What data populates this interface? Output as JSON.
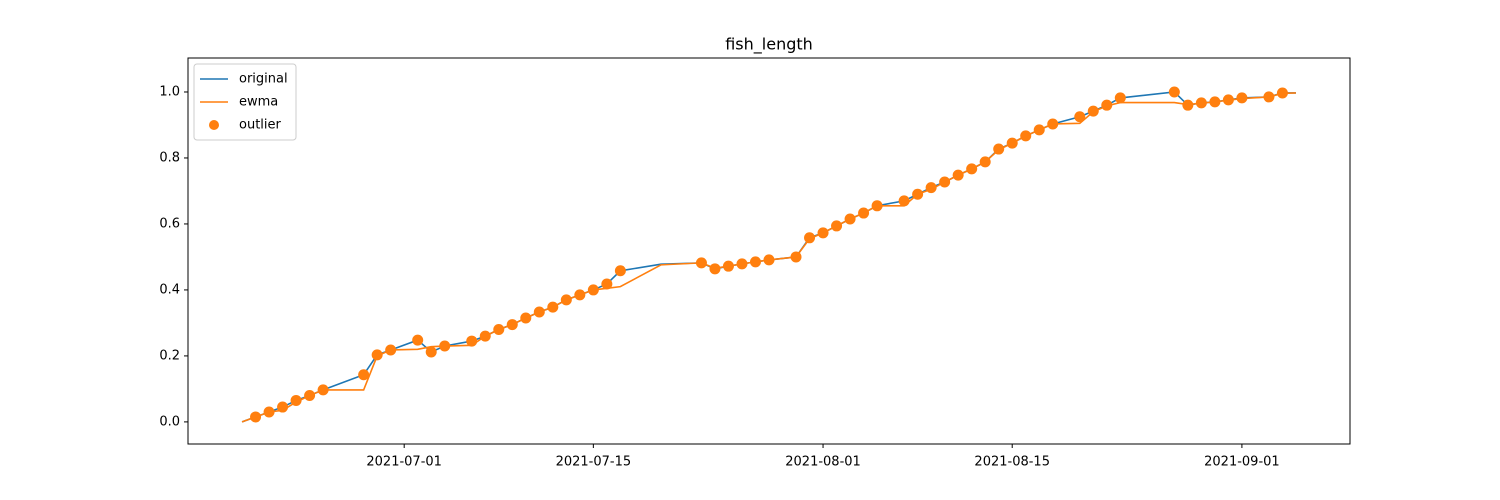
{
  "chart_data": {
    "type": "line",
    "title": "fish_length",
    "x": [
      "2021-06-19",
      "2021-06-20",
      "2021-06-21",
      "2021-06-22",
      "2021-06-23",
      "2021-06-24",
      "2021-06-25",
      "2021-06-28",
      "2021-06-29",
      "2021-06-30",
      "2021-07-02",
      "2021-07-03",
      "2021-07-04",
      "2021-07-06",
      "2021-07-07",
      "2021-07-08",
      "2021-07-09",
      "2021-07-10",
      "2021-07-11",
      "2021-07-12",
      "2021-07-13",
      "2021-07-14",
      "2021-07-15",
      "2021-07-16",
      "2021-07-17",
      "2021-07-20",
      "2021-07-23",
      "2021-07-24",
      "2021-07-25",
      "2021-07-26",
      "2021-07-27",
      "2021-07-28",
      "2021-07-30",
      "2021-07-31",
      "2021-08-01",
      "2021-08-02",
      "2021-08-03",
      "2021-08-04",
      "2021-08-05",
      "2021-08-07",
      "2021-08-08",
      "2021-08-09",
      "2021-08-10",
      "2021-08-11",
      "2021-08-12",
      "2021-08-13",
      "2021-08-14",
      "2021-08-15",
      "2021-08-16",
      "2021-08-17",
      "2021-08-18",
      "2021-08-20",
      "2021-08-21",
      "2021-08-22",
      "2021-08-23",
      "2021-08-27",
      "2021-08-28",
      "2021-08-29",
      "2021-08-30",
      "2021-08-31",
      "2021-09-01",
      "2021-09-03",
      "2021-09-04",
      "2021-09-05"
    ],
    "series": [
      {
        "name": "original",
        "color": "#1f77b4",
        "kind": "line",
        "values": [
          0.0,
          0.015,
          0.03,
          0.045,
          0.065,
          0.08,
          0.097,
          0.143,
          0.203,
          0.218,
          0.248,
          0.212,
          0.23,
          0.245,
          0.26,
          0.28,
          0.295,
          0.315,
          0.333,
          0.348,
          0.37,
          0.385,
          0.4,
          0.418,
          0.458,
          0.478,
          0.482,
          0.464,
          0.472,
          0.479,
          0.485,
          0.491,
          0.5,
          0.558,
          0.573,
          0.594,
          0.615,
          0.633,
          0.655,
          0.67,
          0.69,
          0.71,
          0.727,
          0.748,
          0.767,
          0.788,
          0.827,
          0.845,
          0.867,
          0.885,
          0.903,
          0.925,
          0.942,
          0.96,
          0.982,
          1.0,
          0.96,
          0.967,
          0.97,
          0.976,
          0.982,
          0.985,
          0.997,
          0.997
        ]
      },
      {
        "name": "ewma",
        "color": "#ff7f0e",
        "kind": "line",
        "values": [
          0.0,
          0.015,
          0.03,
          0.035,
          0.06,
          0.08,
          0.097,
          0.097,
          0.2,
          0.218,
          0.22,
          0.228,
          0.23,
          0.232,
          0.26,
          0.28,
          0.295,
          0.315,
          0.333,
          0.348,
          0.37,
          0.385,
          0.4,
          0.405,
          0.41,
          0.476,
          0.482,
          0.466,
          0.472,
          0.479,
          0.485,
          0.491,
          0.5,
          0.555,
          0.573,
          0.594,
          0.615,
          0.633,
          0.655,
          0.655,
          0.69,
          0.705,
          0.727,
          0.748,
          0.767,
          0.788,
          0.825,
          0.845,
          0.867,
          0.885,
          0.903,
          0.905,
          0.94,
          0.958,
          0.968,
          0.968,
          0.962,
          0.966,
          0.97,
          0.975,
          0.98,
          0.985,
          0.996,
          0.997
        ]
      },
      {
        "name": "outlier",
        "color": "#ff7f0e",
        "kind": "scatter",
        "values": [
          null,
          0.015,
          0.03,
          0.045,
          0.065,
          0.08,
          0.097,
          0.143,
          0.203,
          0.218,
          0.248,
          0.212,
          0.23,
          0.245,
          0.26,
          0.28,
          0.295,
          0.315,
          0.333,
          0.348,
          0.37,
          0.385,
          0.4,
          0.418,
          0.458,
          null,
          0.482,
          0.464,
          0.472,
          0.479,
          0.485,
          0.491,
          0.5,
          0.558,
          0.573,
          0.594,
          0.615,
          0.633,
          0.655,
          0.67,
          0.69,
          0.71,
          0.727,
          0.748,
          0.767,
          0.788,
          0.827,
          0.845,
          0.867,
          0.885,
          0.903,
          0.925,
          0.942,
          0.96,
          0.982,
          1.0,
          0.96,
          0.967,
          0.97,
          0.976,
          0.982,
          0.985,
          0.997,
          null
        ]
      }
    ],
    "xlim": [
      "2021-06-15",
      "2021-09-09"
    ],
    "xticks": [
      "2021-07-01",
      "2021-07-15",
      "2021-08-01",
      "2021-08-15",
      "2021-09-01"
    ],
    "ylim": [
      -0.067,
      1.103
    ],
    "yticks": [
      {
        "value": 0,
        "label": "0.0"
      },
      0.2,
      0.4,
      0.6,
      0.8,
      {
        "value": 1,
        "label": "1.0"
      }
    ],
    "legend": "upper left"
  }
}
